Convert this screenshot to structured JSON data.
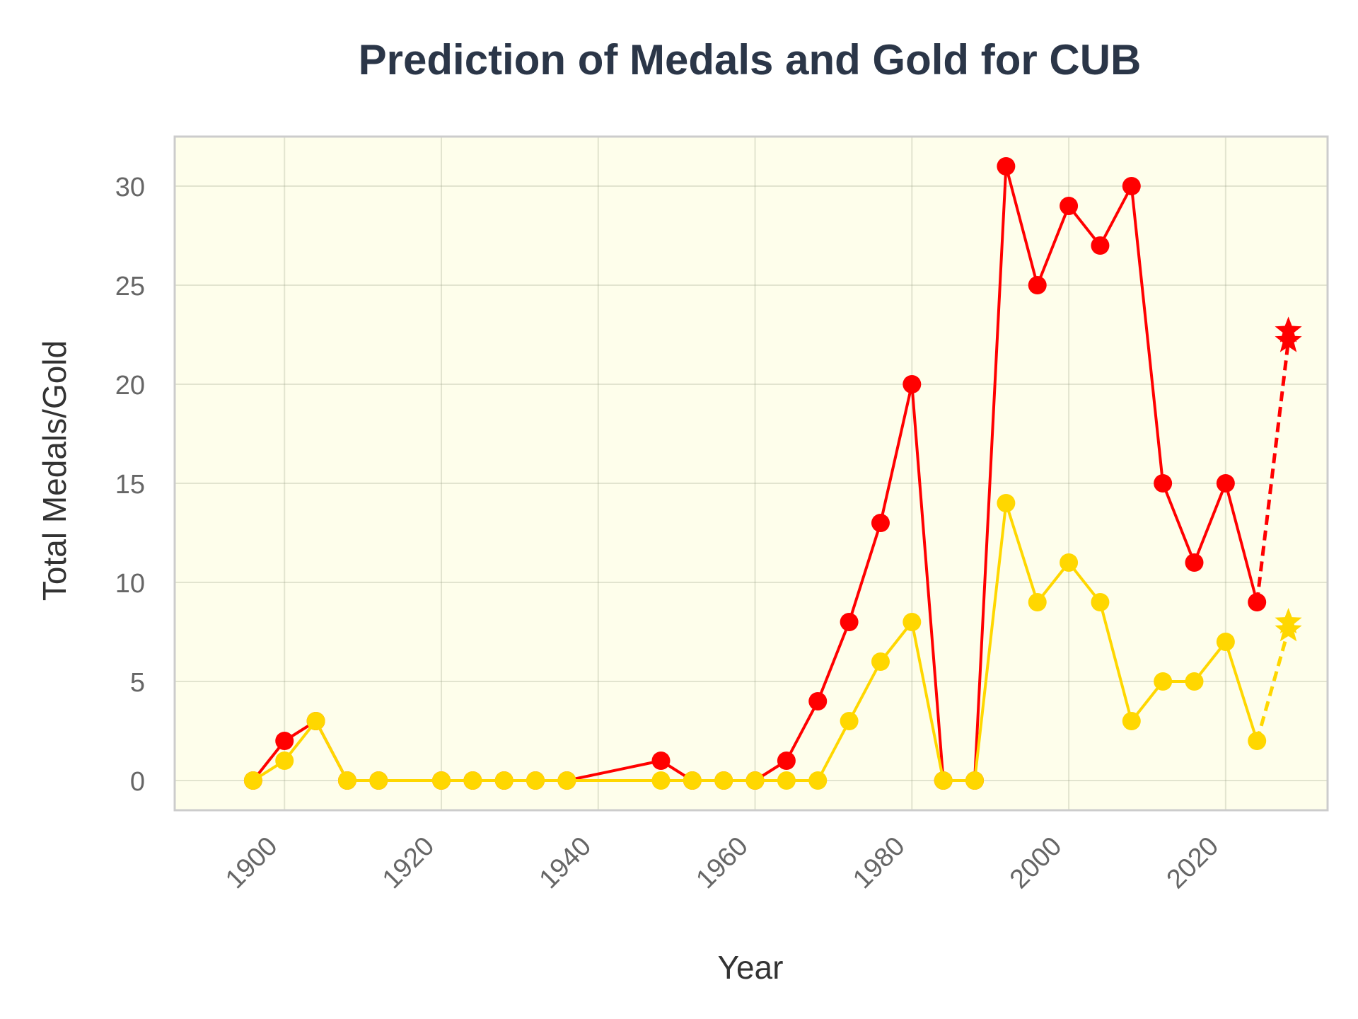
{
  "chart_data": {
    "type": "line",
    "title": "Prediction of Medals and Gold for CUB",
    "xlabel": "Year",
    "ylabel": "Total Medals/Gold",
    "xlim": [
      1886,
      2033
    ],
    "ylim": [
      -1.5,
      32.5
    ],
    "xticks": [
      1900,
      1920,
      1940,
      1960,
      1980,
      2000,
      2020
    ],
    "yticks": [
      0,
      5,
      10,
      15,
      20,
      25,
      30
    ],
    "grid": true,
    "legend": "none",
    "colors": {
      "background": "#fefeeb",
      "frame": "#cccccc",
      "medals": "#ff0000",
      "gold": "#ffd700"
    },
    "series": [
      {
        "key": "medals",
        "x": [
          1896,
          1900,
          1904,
          1908,
          1912,
          1920,
          1924,
          1928,
          1932,
          1936,
          1948,
          1952,
          1956,
          1960,
          1964,
          1968,
          1972,
          1976,
          1980,
          1984,
          1988,
          1992,
          1996,
          2000,
          2004,
          2008,
          2012,
          2016,
          2020,
          2024
        ],
        "values": [
          0,
          2,
          3,
          0,
          0,
          0,
          0,
          0,
          0,
          0,
          1,
          0,
          0,
          0,
          1,
          4,
          8,
          13,
          20,
          0,
          0,
          31,
          25,
          29,
          27,
          30,
          15,
          11,
          15,
          9
        ],
        "prediction": {
          "x": 2028,
          "values": [
            22.7,
            22.2
          ]
        }
      },
      {
        "key": "gold",
        "x": [
          1896,
          1900,
          1904,
          1908,
          1912,
          1920,
          1924,
          1928,
          1932,
          1936,
          1948,
          1952,
          1956,
          1960,
          1964,
          1968,
          1972,
          1976,
          1980,
          1984,
          1988,
          1992,
          1996,
          2000,
          2004,
          2008,
          2012,
          2016,
          2020,
          2024
        ],
        "values": [
          0,
          1,
          3,
          0,
          0,
          0,
          0,
          0,
          0,
          0,
          0,
          0,
          0,
          0,
          0,
          0,
          3,
          6,
          8,
          0,
          0,
          14,
          9,
          11,
          9,
          3,
          5,
          5,
          7,
          2
        ],
        "prediction": {
          "x": 2028,
          "values": [
            8.0,
            7.6
          ]
        }
      }
    ]
  }
}
